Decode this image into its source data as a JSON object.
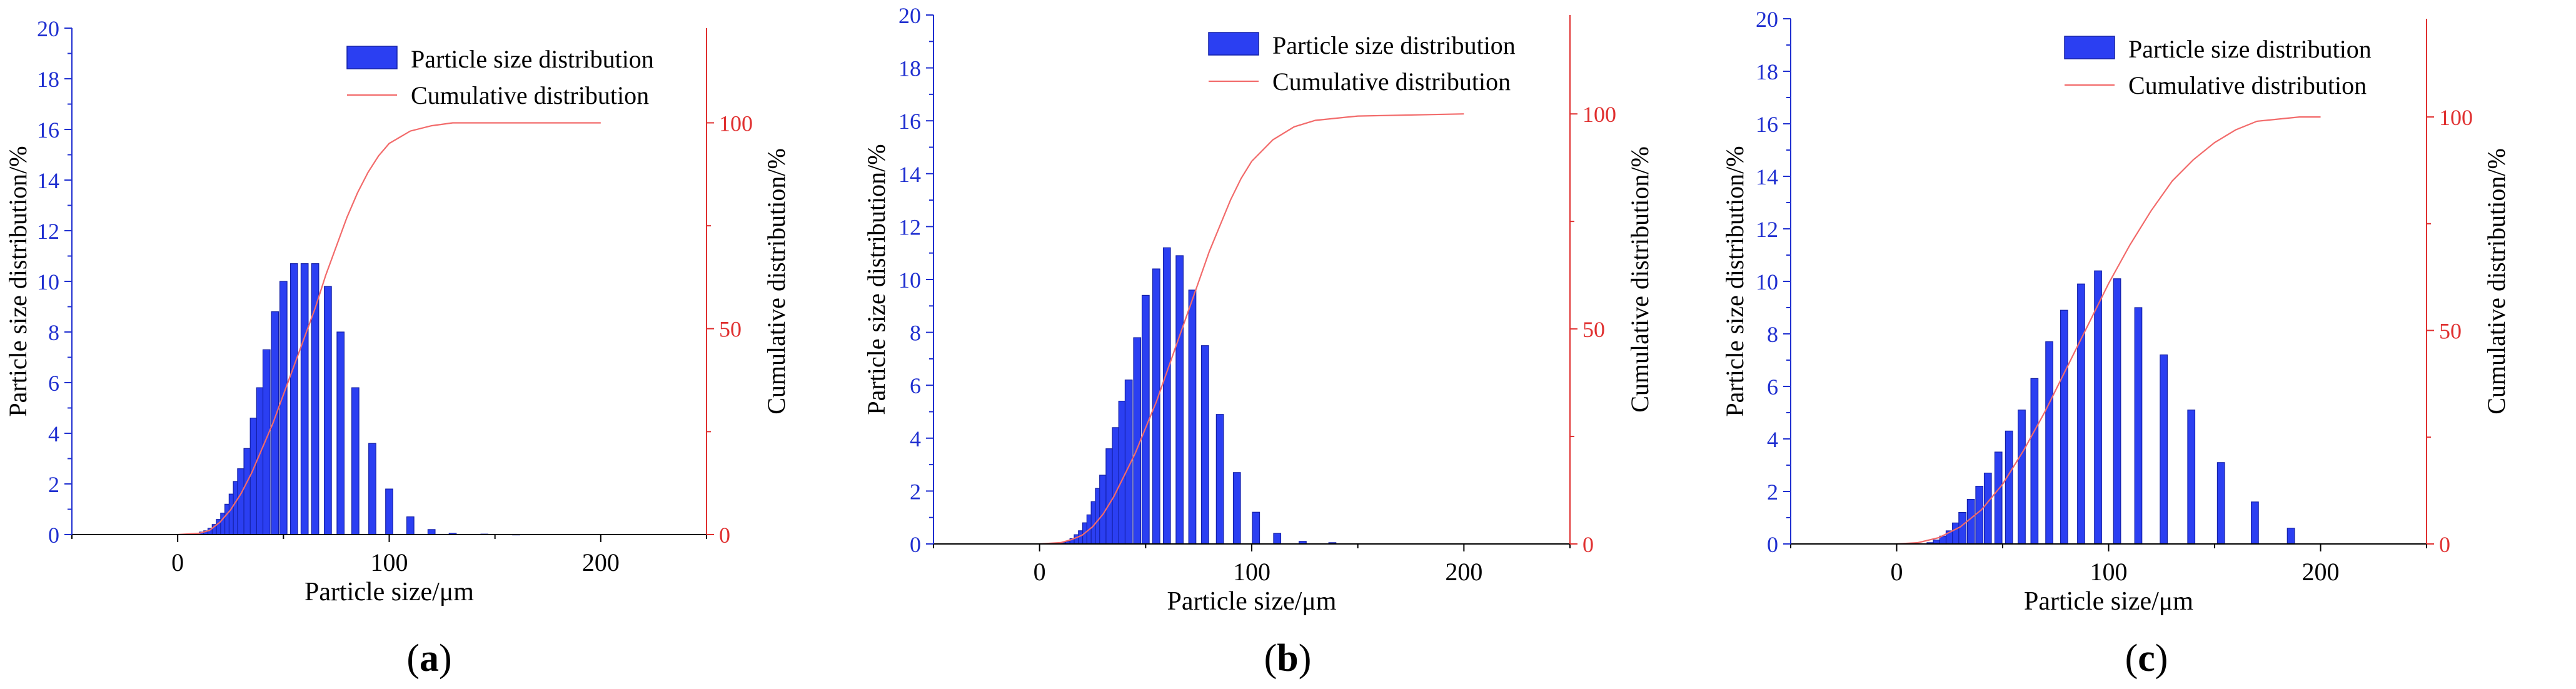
{
  "colors": {
    "bar": "#2B3FF2",
    "bar_edge": "#1420A8",
    "line": "#F26A6A",
    "left_axis": "#1F2FD0",
    "right_axis": "#E03030",
    "axis": "#000000"
  },
  "legend": {
    "bars_label": "Particle size distribution",
    "line_label": "Cumulative distribution"
  },
  "chart_data": [
    {
      "type": "bar",
      "panel_label": "a",
      "xlabel": "Particle size/μm",
      "ylabel": "Particle size distribution/%",
      "y2label": "Cumulative distribution/%",
      "xlim": [
        -50,
        250
      ],
      "xticks": [
        "0",
        "100",
        "200"
      ],
      "ylim": [
        0,
        20
      ],
      "yticks": [
        "0",
        "2",
        "4",
        "6",
        "8",
        "10",
        "12",
        "14",
        "16",
        "18",
        "20"
      ],
      "y2lim": [
        0,
        123
      ],
      "y2ticks": [
        "0",
        "50",
        "100"
      ],
      "series": [
        {
          "name": "Particle size distribution",
          "x": [
            10,
            12,
            14,
            16,
            18,
            20,
            22,
            24,
            26,
            28,
            30,
            33,
            36,
            39,
            42,
            46,
            50,
            55,
            60,
            65,
            71,
            77,
            84,
            92,
            100,
            110,
            120,
            130,
            145,
            160,
            175
          ],
          "values": [
            0.05,
            0.1,
            0.15,
            0.25,
            0.4,
            0.6,
            0.85,
            1.2,
            1.6,
            2.1,
            2.6,
            3.4,
            4.6,
            5.8,
            7.3,
            8.8,
            10.0,
            10.7,
            10.7,
            10.7,
            9.8,
            8.0,
            5.8,
            3.6,
            1.8,
            0.7,
            0.2,
            0.05,
            0.02,
            0.01,
            0.0
          ]
        },
        {
          "name": "Cumulative distribution",
          "x": [
            0,
            10,
            15,
            20,
            25,
            30,
            35,
            40,
            45,
            50,
            55,
            60,
            65,
            70,
            75,
            80,
            85,
            90,
            95,
            100,
            110,
            120,
            130,
            150,
            200
          ],
          "values": [
            0,
            0.3,
            1,
            3,
            6,
            10,
            15,
            21,
            27,
            34,
            41,
            48,
            55,
            63,
            70,
            77,
            83,
            88,
            92,
            95,
            98,
            99.3,
            100,
            100,
            100
          ]
        }
      ]
    },
    {
      "type": "bar",
      "panel_label": "b",
      "xlabel": "Particle size/μm",
      "ylabel": "Particle size distribution/%",
      "y2label": "Cumulative distribution/%",
      "xlim": [
        -50,
        250
      ],
      "xticks": [
        "0",
        "100",
        "200"
      ],
      "ylim": [
        0,
        20
      ],
      "yticks": [
        "0",
        "2",
        "4",
        "6",
        "8",
        "10",
        "12",
        "14",
        "16",
        "18",
        "20"
      ],
      "y2lim": [
        0,
        123
      ],
      "y2ticks": [
        "0",
        "50",
        "100"
      ],
      "series": [
        {
          "name": "Particle size distribution",
          "x": [
            12,
            14,
            16,
            18,
            20,
            22,
            24,
            26,
            28,
            30,
            33,
            36,
            39,
            42,
            46,
            50,
            55,
            60,
            66,
            72,
            78,
            85,
            93,
            102,
            112,
            124,
            138,
            152,
            168
          ],
          "values": [
            0.05,
            0.1,
            0.2,
            0.35,
            0.5,
            0.8,
            1.1,
            1.6,
            2.1,
            2.6,
            3.6,
            4.4,
            5.4,
            6.2,
            7.8,
            9.4,
            10.4,
            11.2,
            10.9,
            9.6,
            7.5,
            4.9,
            2.7,
            1.2,
            0.4,
            0.1,
            0.05,
            0.0,
            0.0
          ]
        },
        {
          "name": "Cumulative distribution",
          "x": [
            0,
            10,
            15,
            20,
            25,
            30,
            35,
            40,
            45,
            50,
            55,
            60,
            65,
            70,
            75,
            80,
            85,
            90,
            95,
            100,
            110,
            120,
            130,
            150,
            200
          ],
          "values": [
            0,
            0.3,
            1,
            2,
            4,
            7,
            11,
            16,
            21,
            27,
            33,
            40,
            47,
            54,
            61,
            68,
            74,
            80,
            85,
            89,
            94,
            97,
            98.5,
            99.5,
            100
          ]
        }
      ]
    },
    {
      "type": "bar",
      "panel_label": "c",
      "xlabel": "Particle size/μm",
      "ylabel": "Particle size distribution/%",
      "y2label": "Cumulative distribution/%",
      "xlim": [
        -50,
        250
      ],
      "xticks": [
        "0",
        "100",
        "200"
      ],
      "ylim": [
        0,
        20
      ],
      "yticks": [
        "0",
        "2",
        "4",
        "6",
        "8",
        "10",
        "12",
        "14",
        "16",
        "18",
        "20"
      ],
      "y2lim": [
        0,
        123
      ],
      "y2ticks": [
        "0",
        "50",
        "100"
      ],
      "series": [
        {
          "name": "Particle size distribution",
          "x": [
            16,
            19,
            22,
            25,
            28,
            31,
            35,
            39,
            43,
            48,
            53,
            59,
            65,
            72,
            79,
            87,
            95,
            104,
            114,
            126,
            139,
            153,
            169,
            186,
            205
          ],
          "values": [
            0.05,
            0.15,
            0.3,
            0.5,
            0.8,
            1.2,
            1.7,
            2.2,
            2.7,
            3.5,
            4.3,
            5.1,
            6.3,
            7.7,
            8.9,
            9.9,
            10.4,
            10.1,
            9.0,
            7.2,
            5.1,
            3.1,
            1.6,
            0.6,
            0.0
          ]
        },
        {
          "name": "Cumulative distribution",
          "x": [
            0,
            10,
            20,
            30,
            40,
            50,
            60,
            70,
            80,
            90,
            100,
            110,
            120,
            130,
            140,
            150,
            160,
            170,
            180,
            190,
            200
          ],
          "values": [
            0,
            0.3,
            1.5,
            4,
            8,
            14,
            22,
            31,
            41,
            51,
            61,
            70,
            78,
            85,
            90,
            94,
            97,
            99,
            99.5,
            100,
            100
          ]
        }
      ]
    }
  ]
}
